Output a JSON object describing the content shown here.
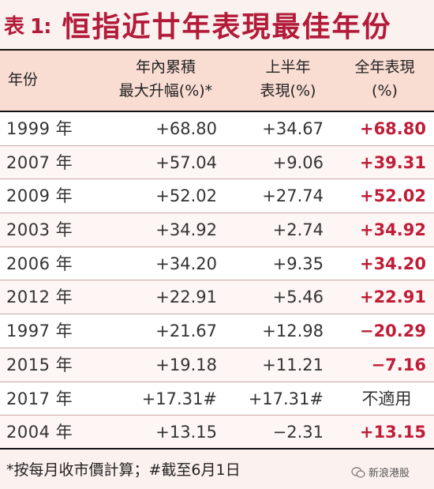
{
  "title": {
    "prefix": "表 1:",
    "main": "恒指近廿年表現最佳年份"
  },
  "table": {
    "headers": {
      "year": "年份",
      "max_line1": "年內累積",
      "max_line2": "最大升幅(%)*",
      "h1_line1": "上半年",
      "h1_line2": "表現(%)",
      "full_line1": "全年表現",
      "full_line2": "(%)"
    },
    "rows": [
      {
        "year": "1999 年",
        "max": "+68.80",
        "h1": "+34.67",
        "full": "+68.80"
      },
      {
        "year": "2007 年",
        "max": "+57.04",
        "h1": "+9.06",
        "full": "+39.31"
      },
      {
        "year": "2009 年",
        "max": "+52.02",
        "h1": "+27.74",
        "full": "+52.02"
      },
      {
        "year": "2003 年",
        "max": "+34.92",
        "h1": "+2.74",
        "full": "+34.92"
      },
      {
        "year": "2006 年",
        "max": "+34.20",
        "h1": "+9.35",
        "full": "+34.20"
      },
      {
        "year": "2012 年",
        "max": "+22.91",
        "h1": "+5.46",
        "full": "+22.91"
      },
      {
        "year": "1997 年",
        "max": "+21.67",
        "h1": "+12.98",
        "full": "−20.29"
      },
      {
        "year": "2015 年",
        "max": "+19.18",
        "h1": "+11.21",
        "full": "−7.16"
      },
      {
        "year": "2017 年",
        "max": "+17.31#",
        "h1": "+17.31#",
        "full": "不適用"
      },
      {
        "year": "2004 年",
        "max": "+13.15",
        "h1": "−2.31",
        "full": "+13.15"
      }
    ]
  },
  "footnote": "*按每月收市價計算；#截至6月1日",
  "logo_text": "新浪港股",
  "colors": {
    "accent_red": "#c01d38",
    "header_bg": "#f9dcd2",
    "page_bg": "#fbf1ee"
  }
}
